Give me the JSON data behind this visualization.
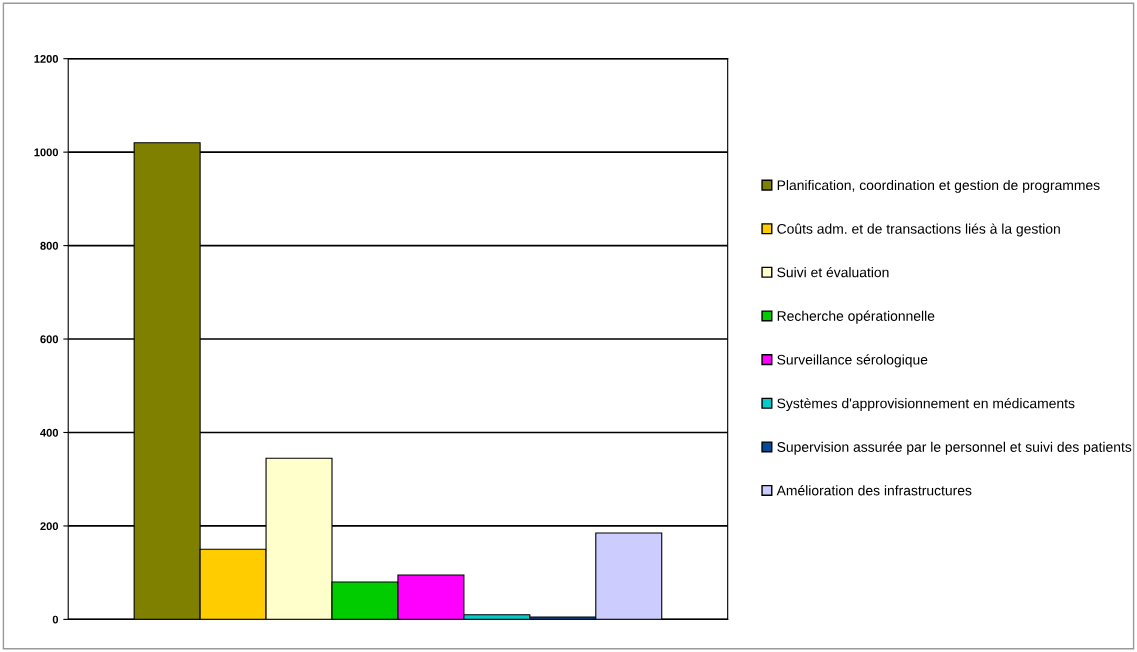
{
  "chart_data": {
    "type": "bar",
    "categories": [
      null
    ],
    "series": [
      {
        "name": "Planification, coordination et gestion de programmes",
        "color": "#808000",
        "values": [
          1020
        ]
      },
      {
        "name": "Coûts adm. et de transactions liés à la gestion",
        "color": "#ffcc00",
        "values": [
          150
        ]
      },
      {
        "name": "Suivi et évaluation",
        "color": "#ffffcc",
        "values": [
          345
        ]
      },
      {
        "name": "Recherche opérationnelle",
        "color": "#00cc00",
        "values": [
          80
        ]
      },
      {
        "name": "Surveillance sérologique",
        "color": "#ff00ff",
        "values": [
          95
        ]
      },
      {
        "name": "Systèmes d'approvisionnement en médicaments",
        "color": "#00cccc",
        "values": [
          10
        ]
      },
      {
        "name": "Supervision assurée par le personnel et suivi des patients",
        "color": "#004c99",
        "values": [
          5
        ]
      },
      {
        "name": "Amélioration des infrastructures",
        "color": "#ccccff",
        "values": [
          185
        ]
      }
    ],
    "ylim": [
      0,
      1200
    ],
    "yticks": [
      0,
      200,
      400,
      600,
      800,
      1000,
      1200
    ],
    "grid": "y",
    "legend": "right",
    "marker": "square"
  }
}
